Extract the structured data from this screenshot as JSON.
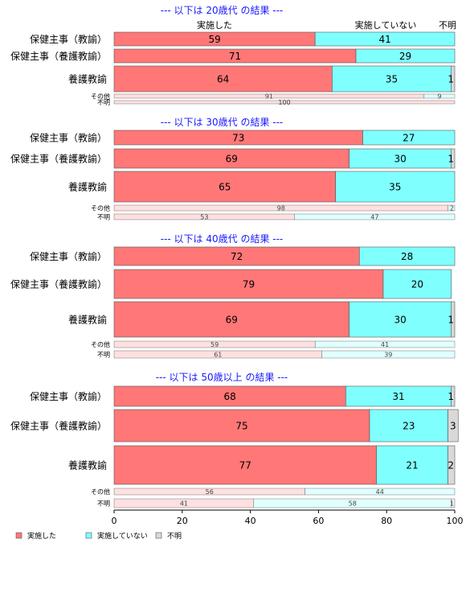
{
  "colors": {
    "done": "#ff7777",
    "not_done": "#80ffff",
    "unknown": "#d9d9d9",
    "title": "#1a1aff"
  },
  "legend": [
    "実施した",
    "実施していない",
    "不明"
  ],
  "column_headers": [
    "実施した",
    "実施していない",
    "不明"
  ],
  "x_axis": {
    "ticks": [
      "0",
      "20",
      "40",
      "60",
      "80",
      "100"
    ]
  },
  "chart_data": [
    {
      "type": "bar",
      "title": "--- 以下は 20歳代 の結果 ---",
      "categories": [
        "保健主事（教諭）",
        "保健主事（養護教諭）",
        "養護教諭",
        "その他",
        "不明"
      ],
      "series": [
        {
          "name": "実施した",
          "values": [
            59,
            71,
            64,
            91,
            100
          ]
        },
        {
          "name": "実施していない",
          "values": [
            41,
            29,
            35,
            9,
            0
          ]
        },
        {
          "name": "不明",
          "values": [
            0,
            0,
            1,
            0,
            0
          ]
        }
      ],
      "xlim": [
        0,
        100
      ]
    },
    {
      "type": "bar",
      "title": "--- 以下は 30歳代 の結果 ---",
      "categories": [
        "保健主事（教諭）",
        "保健主事（養護教諭）",
        "養護教諭",
        "その他",
        "不明"
      ],
      "series": [
        {
          "name": "実施した",
          "values": [
            73,
            69,
            65,
            98,
            53
          ]
        },
        {
          "name": "実施していない",
          "values": [
            27,
            30,
            35,
            2,
            47
          ]
        },
        {
          "name": "不明",
          "values": [
            0,
            1,
            0,
            0,
            0
          ]
        }
      ],
      "xlim": [
        0,
        100
      ]
    },
    {
      "type": "bar",
      "title": "--- 以下は 40歳代 の結果 ---",
      "categories": [
        "保健主事（教諭）",
        "保健主事（養護教諭）",
        "養護教諭",
        "その他",
        "不明"
      ],
      "series": [
        {
          "name": "実施した",
          "values": [
            72,
            79,
            69,
            59,
            61
          ]
        },
        {
          "name": "実施していない",
          "values": [
            28,
            20,
            30,
            41,
            39
          ]
        },
        {
          "name": "不明",
          "values": [
            0,
            0,
            1,
            0,
            0
          ]
        }
      ],
      "xlim": [
        0,
        100
      ]
    },
    {
      "type": "bar",
      "title": "--- 以下は 50歳以上 の結果 ---",
      "categories": [
        "保健主事（教諭）",
        "保健主事（養護教諭）",
        "養護教諭",
        "その他",
        "不明"
      ],
      "series": [
        {
          "name": "実施した",
          "values": [
            68,
            75,
            77,
            56,
            41
          ]
        },
        {
          "name": "実施していない",
          "values": [
            31,
            23,
            21,
            44,
            58
          ]
        },
        {
          "name": "不明",
          "values": [
            1,
            3,
            2,
            0,
            1
          ]
        }
      ],
      "xlim": [
        0,
        100
      ]
    }
  ]
}
